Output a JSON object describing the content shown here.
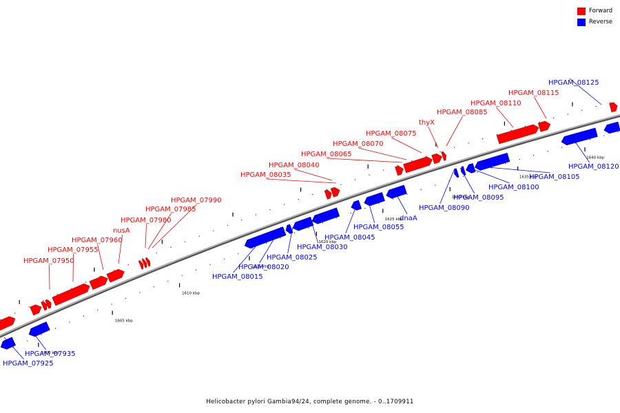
{
  "legend": {
    "forward_label": "Forward",
    "reverse_label": "Reverse",
    "forward_color": "#ff0000",
    "reverse_color": "#0000ff"
  },
  "caption": "Helicobacter pylori Gambia94/24, complete genome. - 0..1709911",
  "genome": {
    "length_bp": 1709911,
    "visible_start_kbp": 1600,
    "visible_end_kbp": 1640
  },
  "ticks": [
    {
      "label": "1600 kbp",
      "kbp": 1600
    },
    {
      "label": "1605 kbp",
      "kbp": 1605
    },
    {
      "label": "1610 kbp",
      "kbp": 1610
    },
    {
      "label": "1615 kbp",
      "kbp": 1615
    },
    {
      "label": "1620 kbp",
      "kbp": 1620
    },
    {
      "label": "1625 kbp",
      "kbp": 1625
    },
    {
      "label": "1630 kbp",
      "kbp": 1630
    },
    {
      "label": "1635 kbp",
      "kbp": 1635
    },
    {
      "label": "1640 kbp",
      "kbp": 1640
    }
  ],
  "forward_labels": [
    "HPGAM_07950",
    "HPGAM_07955",
    "HPGAM_07960",
    "nusA",
    "HPGAM_07980",
    "HPGAM_07985",
    "HPGAM_07990",
    "HPGAM_08035",
    "HPGAM_08040",
    "HPGAM_08065",
    "HPGAM_08070",
    "HPGAM_08075",
    "thyX",
    "HPGAM_08085",
    "HPGAM_08110",
    "HPGAM_08115"
  ],
  "reverse_labels": [
    "HPGAM_07925",
    "HPGAM_07935",
    "HPGAM_08015",
    "HPGAM_08020",
    "HPGAM_08025",
    "HPGAM_08030",
    "HPGAM_08045",
    "HPGAM_08055",
    "dnaA",
    "HPGAM_08090",
    "HPGAM_08095",
    "HPGAM_08100",
    "HPGAM_08105",
    "HPGAM_08120",
    "HPGAM_08125"
  ]
}
